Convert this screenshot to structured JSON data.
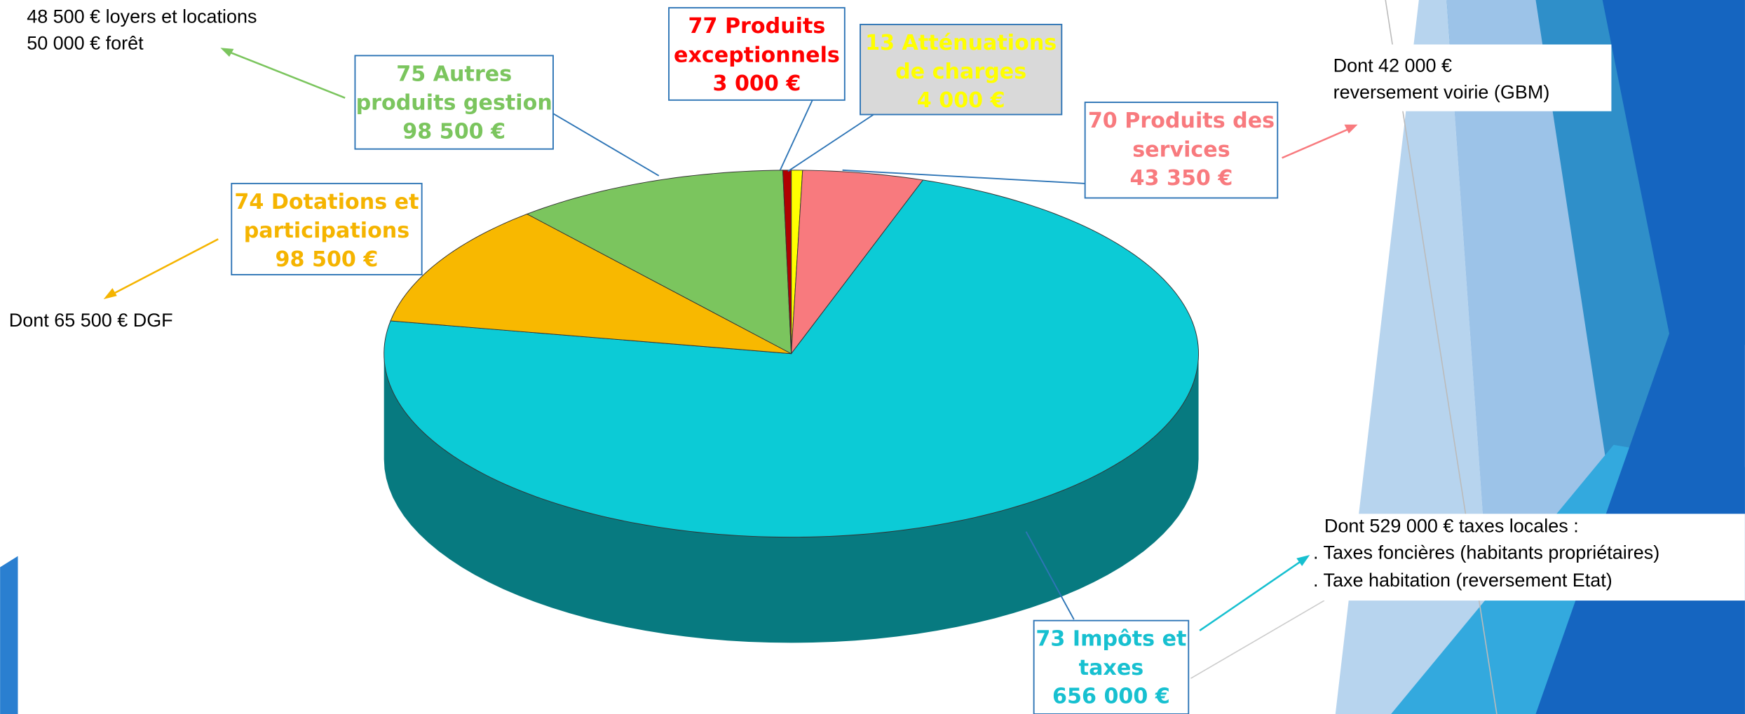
{
  "chart_data": {
    "type": "pie",
    "categories": [
      "13 Atténuations de charges",
      "70 Produits des services",
      "73 Impôts et taxes",
      "74 Dotations et participations",
      "75 Autres produits gestion",
      "77 Produits exceptionnels"
    ],
    "values": [
      4000,
      43350,
      656000,
      98500,
      98500,
      3000
    ],
    "value_labels": [
      "4 000 €",
      "43 350 €",
      "656 000 €",
      "98 500 €",
      "98 500 €",
      "3 000 €"
    ],
    "colors": [
      "#ffff00",
      "#f87a7e",
      "#0ccbd6",
      "#f8b800",
      "#7bc55e",
      "#b00000"
    ],
    "label_colors": [
      "#ffff00",
      "#f87a7e",
      "#17c0d0",
      "#f5b400",
      "#7bc55e",
      "#ff0000"
    ],
    "annotations": [
      "48 500 € loyers et locations",
      "50 000 € forêt",
      "Dont 65 500 € DGF",
      "Dont 42 000 €",
      "reversement voirie (GBM)",
      "Dont 529 000 € taxes locales :",
      ". Taxes foncières (habitants propriétaires)",
      ". Taxe habitation (reversement Etat)"
    ]
  }
}
